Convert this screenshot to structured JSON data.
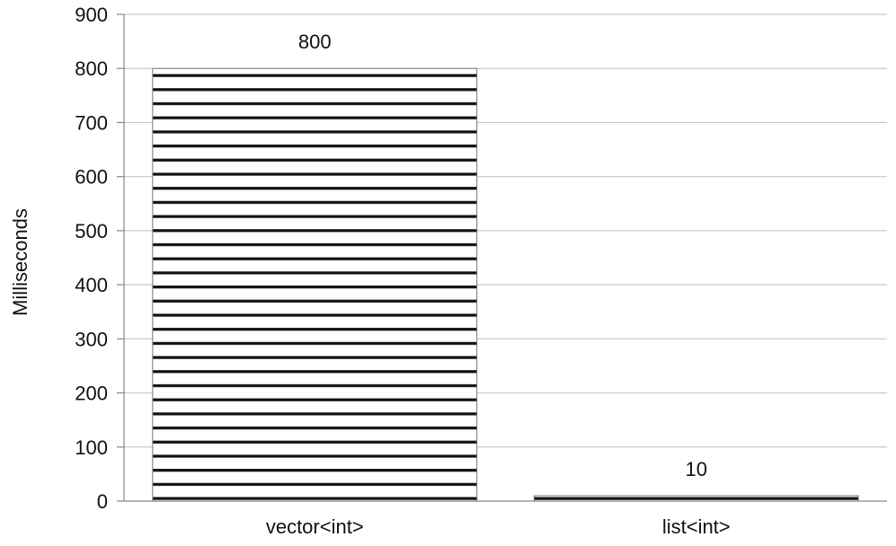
{
  "chart_data": {
    "type": "bar",
    "categories": [
      "vector<int>",
      "list<int>"
    ],
    "values": [
      800,
      10
    ],
    "data_labels": [
      "800",
      "10"
    ],
    "title": "",
    "xlabel": "",
    "ylabel": "Milliseconds",
    "ylim": [
      0,
      900
    ],
    "yticks": [
      0,
      100,
      200,
      300,
      400,
      500,
      600,
      700,
      800,
      900
    ],
    "ytick_labels": [
      "0",
      "100",
      "200",
      "300",
      "400",
      "500",
      "600",
      "700",
      "800",
      "900"
    ],
    "grid": true,
    "legend": "none",
    "bar_fill": "horizontal-stripes",
    "colors": {
      "bar_stripe": "#111111",
      "bar_background": "#ffffff",
      "bar_outline": "#777777",
      "gridline": "#c8c8c8",
      "axis": "#888888"
    }
  }
}
